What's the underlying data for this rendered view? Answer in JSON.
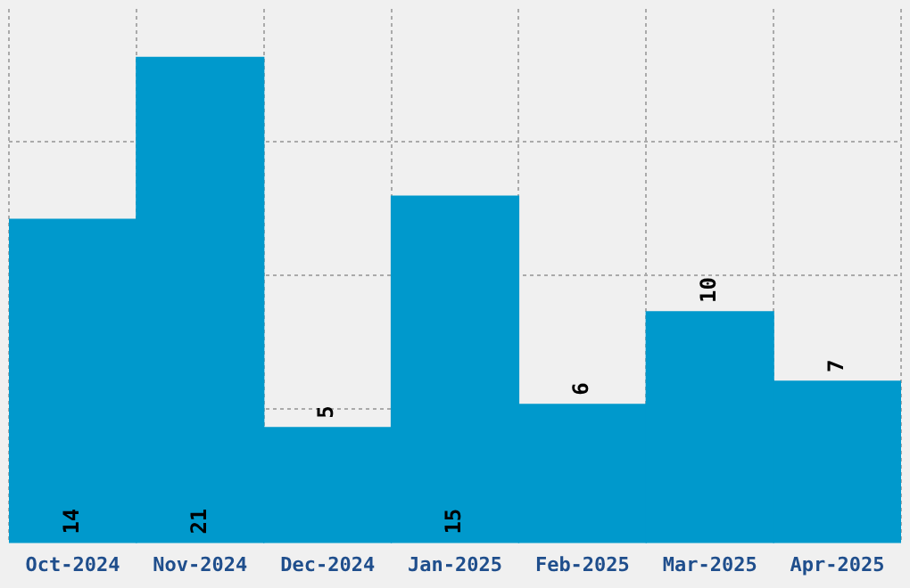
{
  "chart_data": {
    "type": "bar",
    "categories": [
      "Oct-2024",
      "Nov-2024",
      "Dec-2024",
      "Jan-2025",
      "Feb-2025",
      "Mar-2025",
      "Apr-2025"
    ],
    "values": [
      14,
      21,
      5,
      15,
      6,
      10,
      7
    ],
    "color": "#0099cc",
    "ylim": [
      0,
      23.1
    ],
    "yticks": [
      {
        "value": 5.79,
        "label": null
      },
      {
        "value": 11.58,
        "label": null
      },
      {
        "value": 17.37,
        "label": null
      }
    ],
    "tick_labels": "x",
    "grid": true,
    "data_labels": true
  }
}
